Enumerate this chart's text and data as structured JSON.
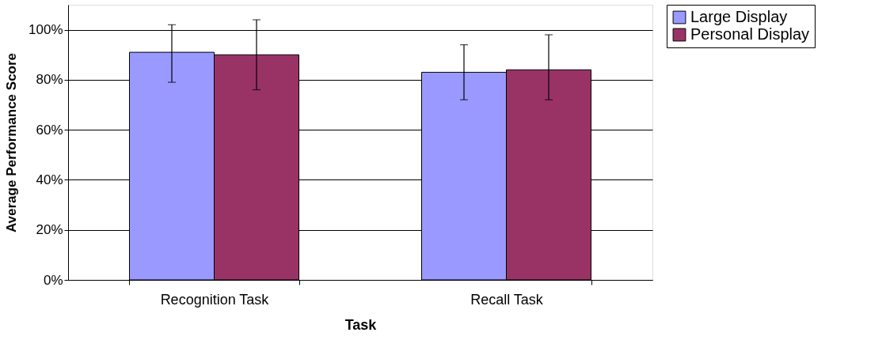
{
  "chart_data": {
    "type": "bar",
    "xlabel": "Task",
    "ylabel": "Average Performance Score",
    "categories": [
      "Recognition Task",
      "Recall Task"
    ],
    "series": [
      {
        "name": "Large Display",
        "color": "#9999ff",
        "values": [
          91,
          83
        ],
        "errors": [
          [
            79,
            102
          ],
          [
            72,
            94
          ]
        ]
      },
      {
        "name": "Personal Display",
        "color": "#993366",
        "values": [
          90,
          84
        ],
        "errors": [
          [
            76,
            104
          ],
          [
            72,
            98
          ]
        ]
      }
    ],
    "ylim": [
      0,
      110
    ],
    "yticks": [
      {
        "value": 0,
        "label": "0%"
      },
      {
        "value": 20,
        "label": "20%"
      },
      {
        "value": 40,
        "label": "40%"
      },
      {
        "value": 60,
        "label": "60%"
      },
      {
        "value": 80,
        "label": "80%"
      },
      {
        "value": 100,
        "label": "100%"
      }
    ],
    "grid": "y",
    "legend": "right"
  }
}
